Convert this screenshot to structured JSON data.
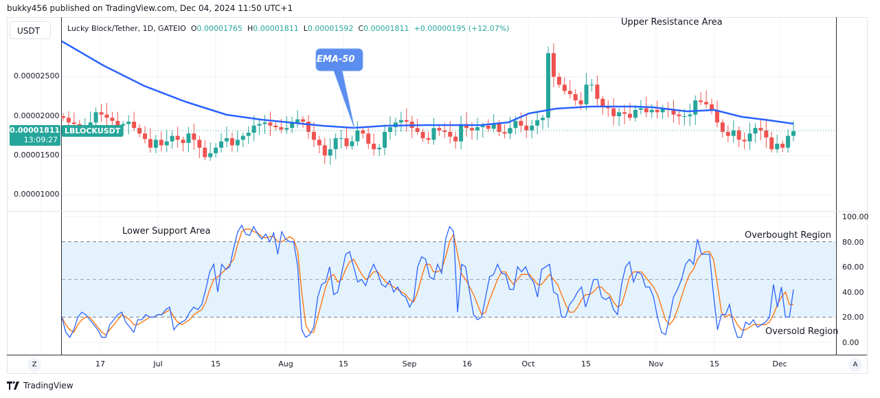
{
  "header": {
    "published_by": "bukky456 published on TradingView.com, Dec 04, 2024 11:50 UTC+1"
  },
  "toolbar": {
    "currency_button": "USDT"
  },
  "legend": {
    "symbol_desc": "Lucky Block/Tether, 1D, GATEIO",
    "open_label": "O",
    "open": "0.00001765",
    "high_label": "H",
    "high": "0.00001811",
    "low_label": "L",
    "low": "0.00001592",
    "close_label": "C",
    "close": "0.00001811",
    "change": "+0.00000195 (+12.07%)"
  },
  "current_price": {
    "value": "0.00001811",
    "countdown": "13:09:27",
    "symbol": "LBLOCKUSDT"
  },
  "annotations": {
    "ema_callout": "EMA-50",
    "upper_resistance": "Upper Resistance Area",
    "lower_support": "Lower Support Area",
    "overbought": "Overbought Region",
    "oversold": "Oversold Region"
  },
  "price_axis": {
    "labels": [
      "0.00002500",
      "0.00002000",
      "0.00001500",
      "0.00001000"
    ]
  },
  "osc_axis": {
    "labels": [
      "100.00",
      "80.00",
      "60.00",
      "40.00",
      "20.00",
      "0.00"
    ]
  },
  "time_axis": {
    "labels": [
      "17",
      "Jul",
      "15",
      "Aug",
      "15",
      "Sep",
      "16",
      "Oct",
      "15",
      "Nov",
      "15",
      "Dec"
    ]
  },
  "buttons": {
    "left_scale": "Z",
    "auto_scale": "A"
  },
  "footer": {
    "brand": "TradingView"
  },
  "colors": {
    "up": "#26a69a",
    "down": "#ef5350",
    "ema": "#2962ff",
    "stoch_k": "#2962ff",
    "stoch_d": "#ff6d00",
    "osc_band": "#e3f2fd",
    "callout": "#5b8def"
  },
  "chart_data": [
    {
      "type": "candlestick",
      "title": "Lucky Block/Tether, 1D, GATEIO",
      "xlabel": "",
      "ylabel": "USDT",
      "x_range": [
        "Jun 10, 2024",
        "Dec 04, 2024"
      ],
      "ylim": [
        9.5e-06,
        3.05e-05
      ],
      "yticks": [
        1e-05,
        1.5e-05,
        2e-05,
        2.5e-05
      ],
      "grid": true,
      "overlays": [
        {
          "name": "EMA-50",
          "approx_start": 2.93e-05,
          "approx_mid_aug": 1.83e-05,
          "approx_oct": 2e-05,
          "approx_end": 1.87e-05
        }
      ],
      "last": {
        "open": 1.765e-05,
        "high": 1.811e-05,
        "low": 1.592e-05,
        "close": 1.811e-05,
        "change": 1.95e-06,
        "change_pct": 12.07
      },
      "series": [
        {
          "name": "Price (approx close)",
          "values": [
            1.98e-05,
            1.92e-05,
            1.9e-05,
            1.85e-05,
            1.88e-05,
            1.92e-05,
            2.05e-05,
            2.02e-05,
            1.98e-05,
            1.94e-05,
            1.88e-05,
            1.9e-05,
            1.93e-05,
            1.85e-05,
            1.78e-05,
            1.71e-05,
            1.6e-05,
            1.7e-05,
            1.63e-05,
            1.68e-05,
            1.75e-05,
            1.7e-05,
            1.66e-05,
            1.78e-05,
            1.7e-05,
            1.6e-05,
            1.48e-05,
            1.53e-05,
            1.6e-05,
            1.68e-05,
            1.72e-05,
            1.63e-05,
            1.7e-05,
            1.75e-05,
            1.79e-05,
            1.88e-05,
            1.9e-05,
            1.92e-05,
            1.88e-05,
            1.86e-05,
            1.83e-05,
            1.85e-05,
            1.92e-05,
            1.96e-05,
            1.93e-05,
            1.8e-05,
            1.7e-05,
            1.63e-05,
            1.5e-05,
            1.58e-05,
            1.72e-05,
            1.72e-05,
            1.62e-05,
            1.68e-05,
            1.82e-05,
            1.78e-05,
            1.65e-05,
            1.58e-05,
            1.6e-05,
            1.8e-05,
            1.86e-05,
            1.92e-05,
            1.95e-05,
            1.93e-05,
            1.85e-05,
            1.8e-05,
            1.72e-05,
            1.7e-05,
            1.85e-05,
            1.82e-05,
            1.8e-05,
            1.74e-05,
            1.68e-05,
            1.9e-05,
            1.85e-05,
            1.82e-05,
            1.86e-05,
            1.88e-05,
            1.84e-05,
            1.9e-05,
            1.8e-05,
            1.78e-05,
            1.85e-05,
            1.94e-05,
            1.88e-05,
            1.82e-05,
            1.88e-05,
            1.95e-05,
            1.98e-05,
            2.8e-05,
            2.5e-05,
            2.4e-05,
            2.32e-05,
            2.28e-05,
            2.2e-05,
            2.15e-05,
            2.4e-05,
            2.4e-05,
            2.22e-05,
            2.12e-05,
            2.1e-05,
            2e-05,
            2.05e-05,
            2.03e-05,
            1.98e-05,
            2.08e-05,
            2.1e-05,
            2.05e-05,
            2.08e-05,
            2.05e-05,
            2.1e-05,
            2.08e-05,
            2.02e-05,
            2e-05,
            2e-05,
            2.02e-05,
            2.2e-05,
            2.18e-05,
            2.15e-05,
            2.08e-05,
            1.92e-05,
            1.8e-05,
            1.75e-05,
            1.82e-05,
            1.7e-05,
            1.68e-05,
            1.78e-05,
            1.85e-05,
            1.82e-05,
            1.73e-05,
            1.58e-05,
            1.65e-05,
            1.6e-05,
            1.75e-05,
            1.81e-05
          ]
        }
      ]
    },
    {
      "type": "line",
      "title": "Stochastic Oscillator",
      "ylim": [
        0,
        100
      ],
      "yticks": [
        0,
        20,
        40,
        60,
        80,
        100
      ],
      "bands": {
        "overbought": 80,
        "middle": 50,
        "oversold": 20
      },
      "series": [
        {
          "name": "%K",
          "values": [
            20,
            8,
            4,
            10,
            20,
            24,
            22,
            18,
            14,
            10,
            4,
            4,
            14,
            18,
            22,
            24,
            16,
            12,
            8,
            18,
            18,
            22,
            20,
            20,
            22,
            22,
            26,
            28,
            10,
            14,
            16,
            18,
            24,
            28,
            26,
            30,
            42,
            56,
            62,
            40,
            62,
            58,
            60,
            75,
            88,
            93,
            86,
            85,
            92,
            86,
            82,
            86,
            80,
            87,
            70,
            88,
            82,
            80,
            80,
            60,
            10,
            4,
            6,
            12,
            36,
            46,
            48,
            60,
            38,
            40,
            55,
            70,
            72,
            60,
            48,
            50,
            45,
            55,
            62,
            55,
            46,
            44,
            49,
            40,
            44,
            38,
            36,
            28,
            34,
            60,
            68,
            66,
            52,
            50,
            62,
            55,
            82,
            92,
            88,
            24,
            62,
            60,
            40,
            22,
            18,
            20,
            36,
            52,
            54,
            62,
            55,
            54,
            42,
            42,
            60,
            56,
            60,
            52,
            48,
            36,
            58,
            60,
            62,
            40,
            38,
            20,
            20,
            30,
            34,
            40,
            44,
            28,
            38,
            50,
            50,
            36,
            34,
            36,
            26,
            22,
            46,
            60,
            64,
            48,
            56,
            54,
            44,
            44,
            36,
            20,
            8,
            6,
            20,
            36,
            42,
            50,
            62,
            66,
            62,
            82,
            70,
            70,
            70,
            38,
            10,
            22,
            22,
            30,
            14,
            4,
            4,
            16,
            14,
            18,
            12,
            14,
            16,
            20,
            46,
            28,
            44,
            20,
            20,
            42
          ]
        },
        {
          "name": "%D",
          "values": [
            20,
            14,
            10,
            8,
            14,
            18,
            20,
            20,
            16,
            12,
            8,
            6,
            10,
            14,
            18,
            22,
            20,
            18,
            14,
            14,
            16,
            18,
            20,
            20,
            22,
            22,
            24,
            26,
            20,
            16,
            14,
            16,
            18,
            22,
            24,
            26,
            32,
            42,
            50,
            52,
            55,
            58,
            62,
            66,
            78,
            88,
            90,
            90,
            88,
            87,
            84,
            83,
            84,
            84,
            80,
            80,
            82,
            84,
            82,
            72,
            40,
            14,
            8,
            8,
            20,
            32,
            44,
            52,
            54,
            48,
            50,
            58,
            64,
            66,
            60,
            54,
            50,
            52,
            56,
            56,
            52,
            48,
            46,
            44,
            42,
            40,
            38,
            34,
            32,
            40,
            52,
            62,
            62,
            56,
            56,
            58,
            68,
            80,
            86,
            70,
            54,
            50,
            44,
            38,
            30,
            22,
            24,
            34,
            42,
            50,
            56,
            56,
            50,
            46,
            50,
            54,
            54,
            54,
            50,
            46,
            46,
            50,
            54,
            50,
            46,
            38,
            30,
            24,
            24,
            28,
            34,
            38,
            38,
            40,
            44,
            44,
            40,
            38,
            32,
            28,
            30,
            40,
            52,
            56,
            56,
            56,
            52,
            48,
            44,
            38,
            28,
            18,
            14,
            18,
            26,
            36,
            46,
            54,
            58,
            66,
            70,
            72,
            72,
            66,
            46,
            24,
            20,
            22,
            20,
            14,
            10,
            10,
            12,
            14,
            14,
            14,
            14,
            16,
            22,
            30,
            36,
            40,
            30,
            30
          ]
        }
      ]
    }
  ]
}
